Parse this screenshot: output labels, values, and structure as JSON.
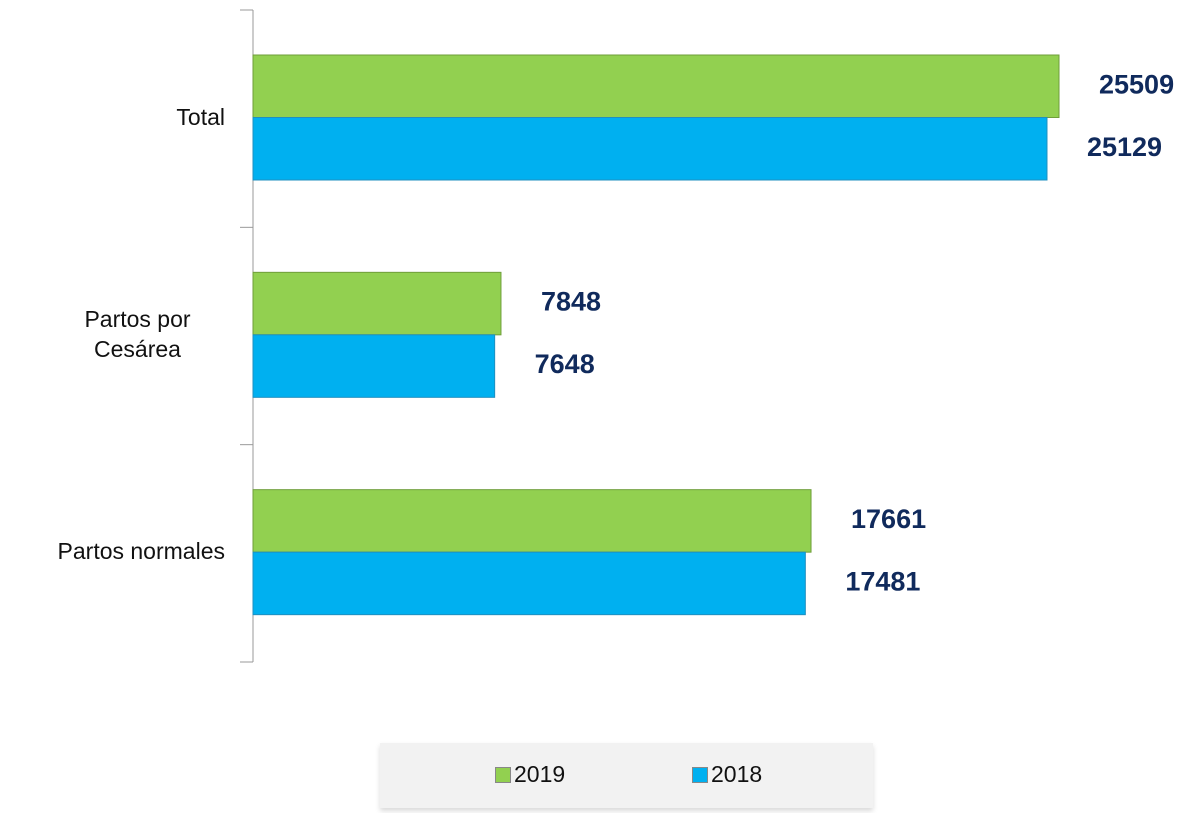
{
  "chart_data": {
    "type": "bar",
    "orientation": "horizontal",
    "categories": [
      "Total",
      "Partos por Cesárea",
      "Partos normales"
    ],
    "series": [
      {
        "name": "2019",
        "color": "#92d050",
        "values": [
          25509,
          7848,
          17661
        ]
      },
      {
        "name": "2018",
        "color": "#00b0f0",
        "values": [
          25129,
          7648,
          17481
        ]
      }
    ],
    "legend": "bottom"
  }
}
